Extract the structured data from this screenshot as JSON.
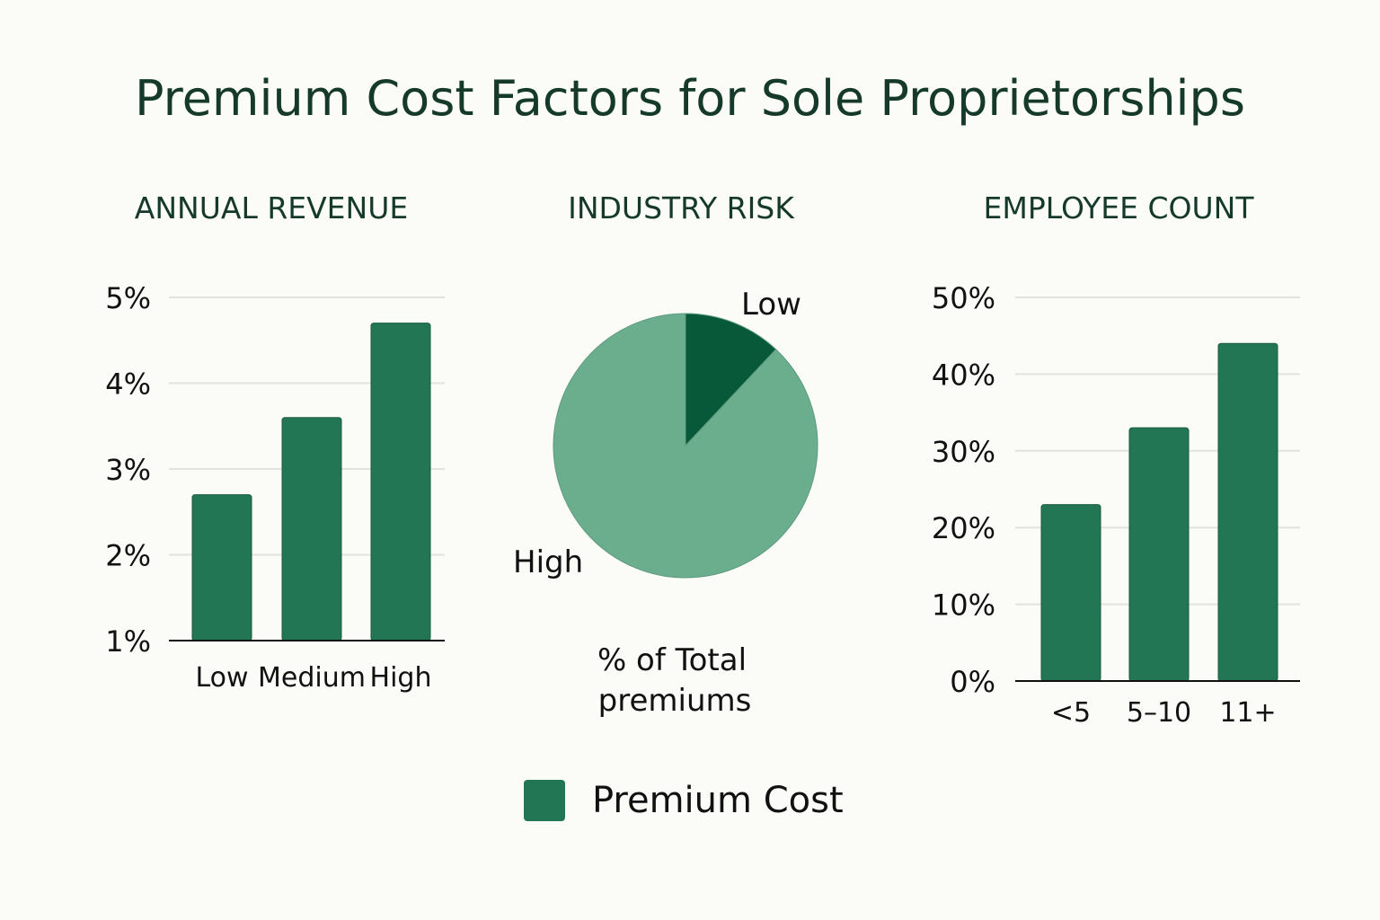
{
  "title": "Premium Cost Factors for Sole Proprietorships",
  "colors": {
    "bar": "#237654",
    "pie_low": "#07593a",
    "pie_high": "#6aae8e",
    "grid": "#e2e2de",
    "axis": "#111111"
  },
  "legend": {
    "label": "Premium Cost"
  },
  "chart_data": [
    {
      "type": "bar",
      "title": "ANNUAL REVENUE",
      "categories": [
        "Low",
        "Medium",
        "High"
      ],
      "values": [
        2.7,
        3.6,
        4.7
      ],
      "unit": "%",
      "ylim": [
        1,
        5
      ],
      "yticks": [
        "1%",
        "2%",
        "3%",
        "4%",
        "5%"
      ],
      "xlabel": "",
      "ylabel": "",
      "grid": true,
      "series_name": "Premium Cost"
    },
    {
      "type": "pie",
      "title": "INDUSTRY RISK",
      "categories": [
        "Low",
        "High"
      ],
      "values": [
        12,
        88
      ],
      "unit": "%",
      "caption_lines": [
        "% of Total",
        "premiums"
      ]
    },
    {
      "type": "bar",
      "title": "EMPLOYEE COUNT",
      "categories": [
        "<5",
        "5–10",
        "11+"
      ],
      "values": [
        23,
        33,
        44
      ],
      "unit": "%",
      "ylim": [
        0,
        50
      ],
      "yticks": [
        "0%",
        "10%",
        "20%",
        "30%",
        "40%",
        "50%"
      ],
      "xlabel": "",
      "ylabel": "",
      "grid": true,
      "series_name": "Premium Cost"
    }
  ]
}
